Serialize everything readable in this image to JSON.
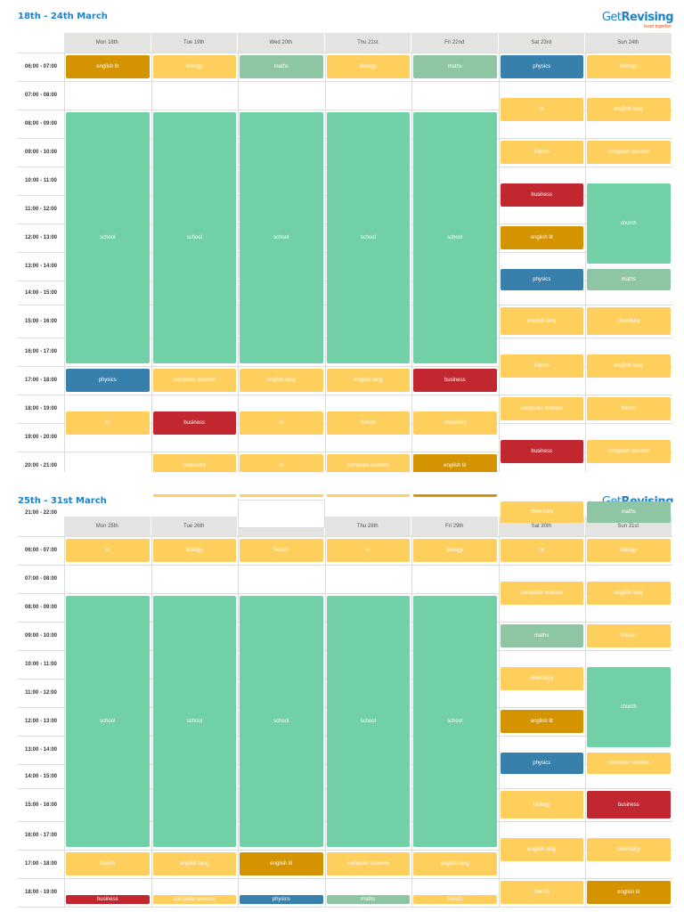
{
  "brand": {
    "name_get": "Get",
    "name_revising": "Revising",
    "tagline": "learn together"
  },
  "colors": {
    "yellow": "#fecf5c",
    "gold": "#d49300",
    "green": "#71d0a6",
    "sage": "#8ec6a3",
    "blue": "#3880ac",
    "red": "#c1272e",
    "title_blue": "#1e82c8"
  },
  "week1": {
    "title": "18th - 24th March",
    "days": [
      "Mon 18th",
      "Tue 19th",
      "Wed 20th",
      "Thu 21st",
      "Fri 22nd",
      "Sat 23rd",
      "Sun 24th"
    ],
    "time_slots": [
      "06:00 - 07:00",
      "07:00 - 08:00",
      "08:00 - 09:00",
      "09:00 - 10:00",
      "10:00 - 11:00",
      "11:00 - 12:00",
      "12:00 - 13:00",
      "13:00 - 14:00",
      "14:00 - 15:00",
      "15:00 - 16:00",
      "16:00 - 17:00",
      "17:00 - 18:00",
      "18:00 - 19:00",
      "19:00 - 20:00",
      "20:00 - 21:00"
    ],
    "events": [
      {
        "day": 0,
        "slot": 0,
        "span": 1,
        "label": "english lit",
        "color": "gold"
      },
      {
        "day": 1,
        "slot": 0,
        "span": 1,
        "label": "biology",
        "color": "yellow"
      },
      {
        "day": 2,
        "slot": 0,
        "span": 1,
        "label": "maths",
        "color": "sage"
      },
      {
        "day": 3,
        "slot": 0,
        "span": 1,
        "label": "biology",
        "color": "yellow"
      },
      {
        "day": 4,
        "slot": 0,
        "span": 1,
        "label": "maths",
        "color": "sage"
      },
      {
        "day": 0,
        "slot": 2,
        "span": 9,
        "label": "school",
        "color": "green"
      },
      {
        "day": 1,
        "slot": 2,
        "span": 9,
        "label": "school",
        "color": "green"
      },
      {
        "day": 2,
        "slot": 2,
        "span": 9,
        "label": "school",
        "color": "green"
      },
      {
        "day": 3,
        "slot": 2,
        "span": 9,
        "label": "school",
        "color": "green"
      },
      {
        "day": 4,
        "slot": 2,
        "span": 9,
        "label": "school",
        "color": "green"
      },
      {
        "day": 0,
        "slot": 11,
        "span": 1,
        "label": "physics",
        "color": "blue"
      },
      {
        "day": 1,
        "slot": 11,
        "span": 1,
        "label": "computer science",
        "color": "yellow"
      },
      {
        "day": 2,
        "slot": 11,
        "span": 1,
        "label": "english lang",
        "color": "yellow"
      },
      {
        "day": 3,
        "slot": 11,
        "span": 1,
        "label": "english lang",
        "color": "yellow"
      },
      {
        "day": 4,
        "slot": 11,
        "span": 1,
        "label": "business",
        "color": "red"
      },
      {
        "day": 0,
        "slot": 12.5,
        "span": 1,
        "label": "rs",
        "color": "yellow"
      },
      {
        "day": 1,
        "slot": 12.5,
        "span": 1,
        "label": "business",
        "color": "red"
      },
      {
        "day": 2,
        "slot": 12.5,
        "span": 1,
        "label": "rs",
        "color": "yellow"
      },
      {
        "day": 3,
        "slot": 12.5,
        "span": 1,
        "label": "french",
        "color": "yellow"
      },
      {
        "day": 4,
        "slot": 12.5,
        "span": 1,
        "label": "chemistry",
        "color": "yellow"
      },
      {
        "day": 1,
        "slot": 14,
        "span": 1,
        "label": "chemistry",
        "color": "yellow"
      },
      {
        "day": 2,
        "slot": 14,
        "span": 1,
        "label": "rs",
        "color": "yellow"
      },
      {
        "day": 3,
        "slot": 14,
        "span": 1,
        "label": "computer science",
        "color": "yellow"
      },
      {
        "day": 4,
        "slot": 14,
        "span": 1,
        "label": "english lit",
        "color": "gold"
      },
      {
        "day": 5,
        "slot": 0,
        "span": 1,
        "label": "physics",
        "color": "blue"
      },
      {
        "day": 6,
        "slot": 0,
        "span": 1,
        "label": "biology",
        "color": "yellow"
      },
      {
        "day": 5,
        "slot": 1.5,
        "span": 1,
        "label": "rs",
        "color": "yellow"
      },
      {
        "day": 6,
        "slot": 1.5,
        "span": 1,
        "label": "english lang",
        "color": "yellow"
      },
      {
        "day": 5,
        "slot": 3,
        "span": 1,
        "label": "french",
        "color": "yellow"
      },
      {
        "day": 6,
        "slot": 3,
        "span": 1,
        "label": "computer science",
        "color": "yellow"
      },
      {
        "day": 5,
        "slot": 4.5,
        "span": 1,
        "label": "business",
        "color": "red"
      },
      {
        "day": 6,
        "slot": 4.5,
        "span": 3,
        "label": "church",
        "color": "green"
      },
      {
        "day": 5,
        "slot": 6,
        "span": 1,
        "label": "english lit",
        "color": "gold"
      },
      {
        "day": 5,
        "slot": 7.5,
        "span": 1,
        "label": "physics",
        "color": "blue"
      },
      {
        "day": 6,
        "slot": 7.5,
        "span": 1,
        "label": "maths",
        "color": "sage"
      },
      {
        "day": 5,
        "slot": 9,
        "span": 1,
        "label": "english lang",
        "color": "yellow"
      },
      {
        "day": 6,
        "slot": 9,
        "span": 1,
        "label": "chemistry",
        "color": "yellow"
      },
      {
        "day": 5,
        "slot": 10.5,
        "span": 1,
        "label": "french",
        "color": "yellow"
      },
      {
        "day": 6,
        "slot": 10.5,
        "span": 1,
        "label": "english lang",
        "color": "yellow"
      },
      {
        "day": 5,
        "slot": 12,
        "span": 1,
        "label": "computer science",
        "color": "yellow"
      },
      {
        "day": 6,
        "slot": 12,
        "span": 1,
        "label": "french",
        "color": "yellow"
      },
      {
        "day": 5,
        "slot": 13.5,
        "span": 1,
        "label": "business",
        "color": "red"
      },
      {
        "day": 6,
        "slot": 13.5,
        "span": 1,
        "label": "computer science",
        "color": "yellow"
      }
    ]
  },
  "overflow": {
    "time_slot": "21:00 - 22:00",
    "events": [
      {
        "day": 5,
        "label": "chemistry",
        "color": "yellow"
      },
      {
        "day": 6,
        "label": "maths",
        "color": "sage"
      }
    ]
  },
  "week2": {
    "title": "25th - 31st March",
    "days": [
      "Mon 25th",
      "Tue 26th",
      "Wed 27th",
      "Thu 28th",
      "Fri 29th",
      "Sat 30th",
      "Sun 31st"
    ],
    "time_slots": [
      "06:00 - 07:00",
      "07:00 - 08:00",
      "08:00 - 09:00",
      "09:00 - 10:00",
      "10:00 - 11:00",
      "11:00 - 12:00",
      "12:00 - 13:00",
      "13:00 - 14:00",
      "14:00 - 15:00",
      "15:00 - 16:00",
      "16:00 - 17:00",
      "17:00 - 18:00",
      "18:00 - 19:00"
    ],
    "events": [
      {
        "day": 0,
        "slot": 0,
        "span": 1,
        "label": "rs",
        "color": "yellow"
      },
      {
        "day": 1,
        "slot": 0,
        "span": 1,
        "label": "biology",
        "color": "yellow"
      },
      {
        "day": 2,
        "slot": 0,
        "span": 1,
        "label": "french",
        "color": "yellow"
      },
      {
        "day": 3,
        "slot": 0,
        "span": 1,
        "label": "rs",
        "color": "yellow"
      },
      {
        "day": 4,
        "slot": 0,
        "span": 1,
        "label": "biology",
        "color": "yellow"
      },
      {
        "day": 0,
        "slot": 2,
        "span": 9,
        "label": "school",
        "color": "green"
      },
      {
        "day": 1,
        "slot": 2,
        "span": 9,
        "label": "school",
        "color": "green"
      },
      {
        "day": 2,
        "slot": 2,
        "span": 9,
        "label": "school",
        "color": "green"
      },
      {
        "day": 3,
        "slot": 2,
        "span": 9,
        "label": "school",
        "color": "green"
      },
      {
        "day": 4,
        "slot": 2,
        "span": 9,
        "label": "school",
        "color": "green"
      },
      {
        "day": 0,
        "slot": 11,
        "span": 1,
        "label": "french",
        "color": "yellow"
      },
      {
        "day": 1,
        "slot": 11,
        "span": 1,
        "label": "english lang",
        "color": "yellow"
      },
      {
        "day": 2,
        "slot": 11,
        "span": 1,
        "label": "english lit",
        "color": "gold"
      },
      {
        "day": 3,
        "slot": 11,
        "span": 1,
        "label": "computer science",
        "color": "yellow"
      },
      {
        "day": 4,
        "slot": 11,
        "span": 1,
        "label": "english lang",
        "color": "yellow"
      },
      {
        "day": 0,
        "slot": 12.5,
        "span": 1,
        "label": "business",
        "color": "red"
      },
      {
        "day": 1,
        "slot": 12.5,
        "span": 1,
        "label": "computer science",
        "color": "yellow"
      },
      {
        "day": 2,
        "slot": 12.5,
        "span": 1,
        "label": "physics",
        "color": "blue"
      },
      {
        "day": 3,
        "slot": 12.5,
        "span": 1,
        "label": "maths",
        "color": "sage"
      },
      {
        "day": 4,
        "slot": 12.5,
        "span": 1,
        "label": "french",
        "color": "yellow"
      },
      {
        "day": 5,
        "slot": 0,
        "span": 1,
        "label": "rs",
        "color": "yellow"
      },
      {
        "day": 6,
        "slot": 0,
        "span": 1,
        "label": "biology",
        "color": "yellow"
      },
      {
        "day": 5,
        "slot": 1.5,
        "span": 1,
        "label": "computer science",
        "color": "yellow"
      },
      {
        "day": 6,
        "slot": 1.5,
        "span": 1,
        "label": "english lang",
        "color": "yellow"
      },
      {
        "day": 5,
        "slot": 3,
        "span": 1,
        "label": "maths",
        "color": "sage"
      },
      {
        "day": 6,
        "slot": 3,
        "span": 1,
        "label": "french",
        "color": "yellow"
      },
      {
        "day": 5,
        "slot": 4.5,
        "span": 1,
        "label": "chemistry",
        "color": "yellow"
      },
      {
        "day": 6,
        "slot": 4.5,
        "span": 3,
        "label": "church",
        "color": "green"
      },
      {
        "day": 5,
        "slot": 6,
        "span": 1,
        "label": "english lit",
        "color": "gold"
      },
      {
        "day": 5,
        "slot": 7.5,
        "span": 1,
        "label": "physics",
        "color": "blue"
      },
      {
        "day": 6,
        "slot": 7.5,
        "span": 1,
        "label": "computer science",
        "color": "yellow"
      },
      {
        "day": 5,
        "slot": 9,
        "span": 1,
        "label": "biology",
        "color": "yellow"
      },
      {
        "day": 6,
        "slot": 9,
        "span": 1,
        "label": "business",
        "color": "red"
      },
      {
        "day": 5,
        "slot": 10.5,
        "span": 1,
        "label": "english lang",
        "color": "yellow"
      },
      {
        "day": 6,
        "slot": 10.5,
        "span": 1,
        "label": "chemistry",
        "color": "yellow"
      },
      {
        "day": 5,
        "slot": 12,
        "span": 1,
        "label": "french",
        "color": "yellow"
      },
      {
        "day": 6,
        "slot": 12,
        "span": 1,
        "label": "english lit",
        "color": "gold"
      }
    ]
  }
}
